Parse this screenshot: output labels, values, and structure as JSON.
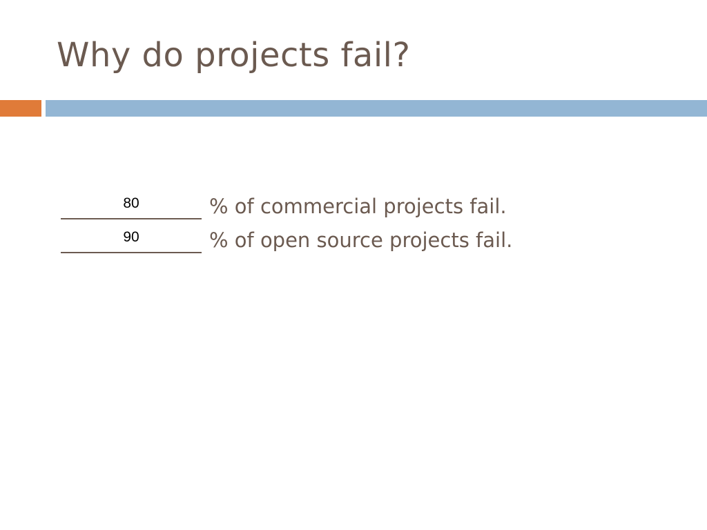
{
  "slide": {
    "title": "Why do projects fail?",
    "colors": {
      "accent_orange": "#e07b39",
      "accent_blue": "#93b6d4",
      "text": "#6b5a50"
    },
    "statements": [
      {
        "answer": "80",
        "text": "% of commercial projects fail."
      },
      {
        "answer": "90",
        "text": "% of open source projects fail."
      }
    ]
  }
}
